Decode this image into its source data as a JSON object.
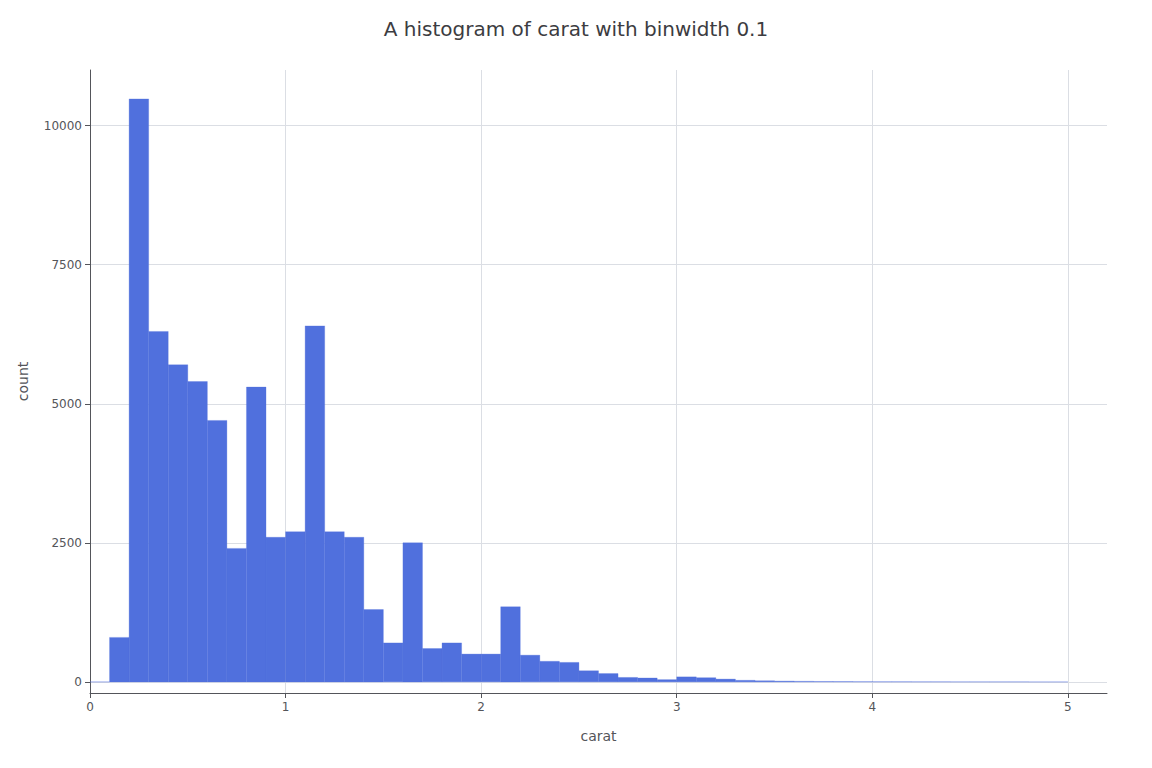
{
  "chart_data": {
    "type": "histogram",
    "title": "A histogram of carat with binwidth 0.1",
    "x_label": "carat",
    "y_label": "count",
    "bins": [
      0,
      0.1,
      0.2,
      0.3,
      0.4,
      0.5,
      0.6,
      0.7,
      0.8,
      0.9,
      1,
      1.1,
      1.2,
      1.3,
      1.4,
      1.5,
      1.6,
      1.7,
      1.8,
      1.9,
      2,
      2.1,
      2.2,
      2.3,
      2.4,
      2.5,
      2.6,
      2.7,
      2.8,
      2.9,
      3,
      3.1,
      3.2,
      3.3,
      3.4,
      3.5,
      3.6,
      3.7,
      3.8,
      3.9,
      4,
      4.1,
      4.2,
      4.3,
      4.4,
      4.5,
      4.6,
      4.7,
      4.8,
      4.9,
      5
    ],
    "values": [
      0,
      800,
      10480,
      6300,
      5700,
      5400,
      4700,
      2400,
      5300,
      2600,
      2700,
      6400,
      2700,
      2600,
      1300,
      700,
      2500,
      600,
      700,
      500,
      500,
      1350,
      480,
      370,
      350,
      200,
      150,
      80,
      70,
      40,
      90,
      75,
      50,
      28,
      20,
      14,
      10,
      7,
      6,
      4,
      3,
      3,
      2,
      2,
      1,
      1,
      1,
      1,
      0,
      0
    ],
    "xlim": [
      0,
      5.2
    ],
    "ylim": [
      -200,
      11000
    ],
    "xticks": [
      0,
      1,
      2,
      3,
      4,
      5
    ],
    "yticks": [
      0,
      2500,
      5000,
      7500,
      10000
    ],
    "grid": true
  }
}
